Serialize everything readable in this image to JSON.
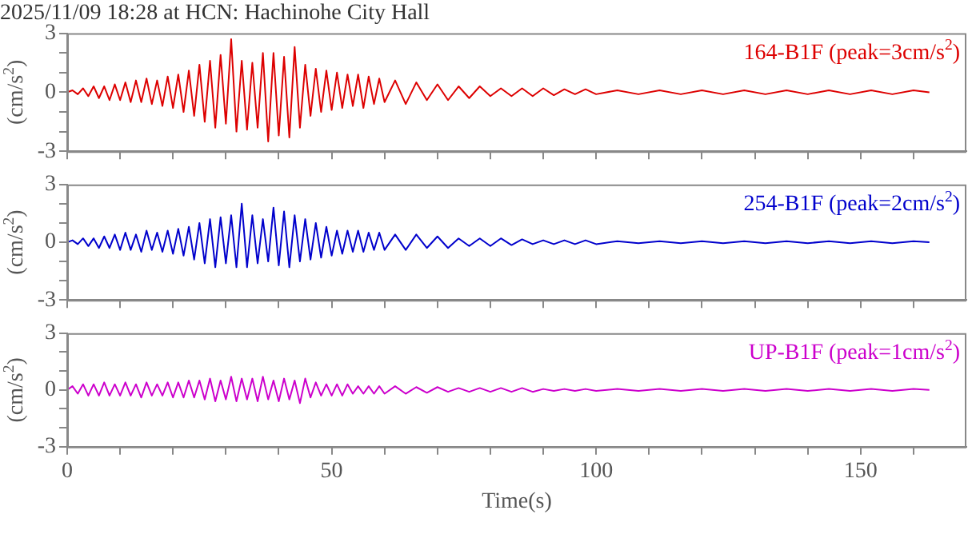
{
  "chart_data": [
    {
      "type": "line",
      "title": "2025/11/09 18:28 at HCN: Hachinohe City Hall",
      "ylabel": "(cm/s$^{2}$)",
      "annotations": [
        "164-B1F (peak=3cm/s$^{2}$)"
      ],
      "tick_labels": "y",
      "x": [
        0,
        1,
        2,
        3,
        4,
        5,
        6,
        7,
        8,
        9,
        10,
        11,
        12,
        13,
        14,
        15,
        16,
        17,
        18,
        19,
        20,
        21,
        22,
        23,
        24,
        25,
        26,
        27,
        28,
        29,
        30,
        31,
        32,
        33,
        34,
        35,
        36,
        37,
        38,
        39,
        40,
        41,
        42,
        43,
        44,
        45,
        46,
        47,
        48,
        49,
        50,
        51,
        52,
        53,
        54,
        55,
        56,
        57,
        58,
        59,
        60,
        62,
        64,
        66,
        68,
        70,
        72,
        74,
        76,
        78,
        80,
        82,
        84,
        86,
        88,
        90,
        92,
        94,
        96,
        98,
        100,
        104,
        108,
        112,
        116,
        120,
        124,
        128,
        132,
        136,
        140,
        144,
        148,
        152,
        156,
        160,
        163
      ],
      "series": [
        {
          "color": "#dd0000",
          "values": [
            0,
            0.1,
            -0.1,
            0.2,
            -0.2,
            0.3,
            -0.3,
            0.3,
            -0.4,
            0.4,
            -0.4,
            0.5,
            -0.5,
            0.6,
            -0.5,
            0.7,
            -0.6,
            0.6,
            -0.7,
            0.8,
            -0.8,
            0.9,
            -1.0,
            1.1,
            -1.2,
            1.4,
            -1.5,
            1.6,
            -1.8,
            1.9,
            -1.6,
            2.7,
            -2.0,
            1.6,
            -1.9,
            1.5,
            -1.8,
            2.0,
            -2.5,
            2.0,
            -2.2,
            1.8,
            -2.3,
            2.3,
            -1.8,
            1.4,
            -1.2,
            1.2,
            -1.0,
            1.1,
            -0.9,
            1.0,
            -0.8,
            0.9,
            -0.7,
            0.9,
            -0.8,
            0.8,
            -0.6,
            0.7,
            -0.5,
            0.6,
            -0.6,
            0.5,
            -0.4,
            0.4,
            -0.4,
            0.3,
            -0.3,
            0.3,
            -0.2,
            0.2,
            -0.2,
            0.2,
            -0.2,
            0.2,
            -0.15,
            0.15,
            -0.1,
            0.15,
            -0.1,
            0.1,
            -0.1,
            0.1,
            -0.1,
            0.1,
            -0.1,
            0.1,
            -0.1,
            0.1,
            -0.1,
            0.1,
            -0.1,
            0.1,
            -0.1,
            0.1,
            0
          ]
        }
      ],
      "xlim": [
        0,
        170
      ],
      "xticks": [
        0,
        {
          "value": 10,
          "label": null
        },
        {
          "value": 20,
          "label": null
        },
        {
          "value": 30,
          "label": null
        },
        {
          "value": 40,
          "label": null
        },
        50,
        {
          "value": 60,
          "label": null
        },
        {
          "value": 70,
          "label": null
        },
        {
          "value": 80,
          "label": null
        },
        {
          "value": 90,
          "label": null
        },
        100,
        {
          "value": 110,
          "label": null
        },
        {
          "value": 120,
          "label": null
        },
        {
          "value": 130,
          "label": null
        },
        {
          "value": 140,
          "label": null
        },
        150,
        {
          "value": 160,
          "label": null
        }
      ],
      "ylim": [
        -3,
        3
      ],
      "yticks": [
        -3,
        {
          "value": -2,
          "label": null
        },
        {
          "value": -1,
          "label": null
        },
        0,
        {
          "value": 1,
          "label": null
        },
        {
          "value": 2,
          "label": null
        },
        3
      ]
    },
    {
      "type": "line",
      "ylabel": "(cm/s$^{2}$)",
      "annotations": [
        "254-B1F (peak=2cm/s$^{2}$)"
      ],
      "tick_labels": "y",
      "x": [
        0,
        1,
        2,
        3,
        4,
        5,
        6,
        7,
        8,
        9,
        10,
        11,
        12,
        13,
        14,
        15,
        16,
        17,
        18,
        19,
        20,
        21,
        22,
        23,
        24,
        25,
        26,
        27,
        28,
        29,
        30,
        31,
        32,
        33,
        34,
        35,
        36,
        37,
        38,
        39,
        40,
        41,
        42,
        43,
        44,
        45,
        46,
        47,
        48,
        49,
        50,
        51,
        52,
        53,
        54,
        55,
        56,
        57,
        58,
        59,
        60,
        62,
        64,
        66,
        68,
        70,
        72,
        74,
        76,
        78,
        80,
        82,
        84,
        86,
        88,
        90,
        92,
        94,
        96,
        98,
        100,
        104,
        108,
        112,
        116,
        120,
        124,
        128,
        132,
        136,
        140,
        144,
        148,
        152,
        156,
        160,
        163
      ],
      "series": [
        {
          "color": "#0000cc",
          "values": [
            0,
            0.1,
            -0.1,
            0.2,
            -0.2,
            0.2,
            -0.3,
            0.3,
            -0.3,
            0.4,
            -0.4,
            0.5,
            -0.4,
            0.4,
            -0.5,
            0.6,
            -0.4,
            0.5,
            -0.5,
            0.6,
            -0.6,
            0.7,
            -0.7,
            0.8,
            -0.9,
            1.0,
            -1.1,
            1.2,
            -1.3,
            1.3,
            -1.1,
            1.4,
            -1.3,
            2.0,
            -1.3,
            1.4,
            -1.1,
            1.2,
            -1.0,
            1.8,
            -1.2,
            1.6,
            -1.3,
            1.4,
            -1.0,
            1.2,
            -0.9,
            1.0,
            -0.8,
            0.8,
            -0.7,
            0.6,
            -0.6,
            0.6,
            -0.5,
            0.6,
            -0.5,
            0.5,
            -0.4,
            0.5,
            -0.4,
            0.4,
            -0.4,
            0.4,
            -0.3,
            0.3,
            -0.3,
            0.2,
            -0.2,
            0.2,
            -0.2,
            0.2,
            -0.15,
            0.15,
            -0.1,
            0.1,
            -0.1,
            0.1,
            -0.1,
            0.1,
            -0.1,
            0.05,
            -0.05,
            0.05,
            -0.05,
            0.05,
            -0.05,
            0.05,
            -0.05,
            0.05,
            -0.05,
            0.05,
            -0.05,
            0.05,
            -0.05,
            0.05,
            0
          ]
        }
      ],
      "xlim": [
        0,
        170
      ],
      "xticks": [
        0,
        {
          "value": 10,
          "label": null
        },
        {
          "value": 20,
          "label": null
        },
        {
          "value": 30,
          "label": null
        },
        {
          "value": 40,
          "label": null
        },
        50,
        {
          "value": 60,
          "label": null
        },
        {
          "value": 70,
          "label": null
        },
        {
          "value": 80,
          "label": null
        },
        {
          "value": 90,
          "label": null
        },
        100,
        {
          "value": 110,
          "label": null
        },
        {
          "value": 120,
          "label": null
        },
        {
          "value": 130,
          "label": null
        },
        {
          "value": 140,
          "label": null
        },
        150,
        {
          "value": 160,
          "label": null
        }
      ],
      "ylim": [
        -3,
        3
      ],
      "yticks": [
        -3,
        {
          "value": -2,
          "label": null
        },
        {
          "value": -1,
          "label": null
        },
        0,
        {
          "value": 1,
          "label": null
        },
        {
          "value": 2,
          "label": null
        },
        3
      ]
    },
    {
      "type": "line",
      "xlabel": "Time(s)",
      "ylabel": "(cm/s$^{2}$)",
      "annotations": [
        "UP-B1F (peak=1cm/s$^{2}$)"
      ],
      "x": [
        0,
        1,
        2,
        3,
        4,
        5,
        6,
        7,
        8,
        9,
        10,
        11,
        12,
        13,
        14,
        15,
        16,
        17,
        18,
        19,
        20,
        21,
        22,
        23,
        24,
        25,
        26,
        27,
        28,
        29,
        30,
        31,
        32,
        33,
        34,
        35,
        36,
        37,
        38,
        39,
        40,
        41,
        42,
        43,
        44,
        45,
        46,
        47,
        48,
        49,
        50,
        51,
        52,
        53,
        54,
        55,
        56,
        57,
        58,
        59,
        60,
        62,
        64,
        66,
        68,
        70,
        72,
        74,
        76,
        78,
        80,
        82,
        84,
        86,
        88,
        90,
        92,
        94,
        96,
        98,
        100,
        104,
        108,
        112,
        116,
        120,
        124,
        128,
        132,
        136,
        140,
        144,
        148,
        152,
        156,
        160,
        163
      ],
      "series": [
        {
          "color": "#cc00cc",
          "values": [
            0,
            0.2,
            -0.2,
            0.3,
            -0.3,
            0.3,
            -0.3,
            0.4,
            -0.3,
            0.3,
            -0.3,
            0.4,
            -0.3,
            0.3,
            -0.4,
            0.4,
            -0.3,
            0.3,
            -0.3,
            0.4,
            -0.4,
            0.4,
            -0.4,
            0.5,
            -0.4,
            0.5,
            -0.5,
            0.6,
            -0.6,
            0.5,
            -0.5,
            0.7,
            -0.6,
            0.6,
            -0.5,
            0.6,
            -0.6,
            0.7,
            -0.5,
            0.5,
            -0.6,
            0.6,
            -0.5,
            0.5,
            -0.7,
            0.6,
            -0.4,
            0.4,
            -0.3,
            0.3,
            -0.3,
            0.3,
            -0.3,
            0.3,
            -0.2,
            0.2,
            -0.2,
            0.2,
            -0.2,
            0.2,
            -0.2,
            0.2,
            -0.2,
            0.15,
            -0.15,
            0.15,
            -0.1,
            0.1,
            -0.1,
            0.1,
            -0.1,
            0.1,
            -0.1,
            0.1,
            -0.1,
            0.05,
            -0.05,
            0.05,
            -0.05,
            0.05,
            -0.05,
            0.05,
            -0.05,
            0.05,
            -0.05,
            0.05,
            -0.05,
            0.05,
            -0.05,
            0.05,
            -0.05,
            0.05,
            -0.05,
            0.05,
            -0.05,
            0.05,
            0
          ]
        }
      ],
      "xlim": [
        0,
        170
      ],
      "xticks": [
        0,
        {
          "value": 10,
          "label": null
        },
        {
          "value": 20,
          "label": null
        },
        {
          "value": 30,
          "label": null
        },
        {
          "value": 40,
          "label": null
        },
        50,
        {
          "value": 60,
          "label": null
        },
        {
          "value": 70,
          "label": null
        },
        {
          "value": 80,
          "label": null
        },
        {
          "value": 90,
          "label": null
        },
        100,
        {
          "value": 110,
          "label": null
        },
        {
          "value": 120,
          "label": null
        },
        {
          "value": 130,
          "label": null
        },
        {
          "value": 140,
          "label": null
        },
        150,
        {
          "value": 160,
          "label": null
        }
      ],
      "ylim": [
        -3,
        3
      ],
      "yticks": [
        -3,
        {
          "value": -2,
          "label": null
        },
        {
          "value": -1,
          "label": null
        },
        0,
        {
          "value": 1,
          "label": null
        },
        {
          "value": 2,
          "label": null
        },
        3
      ]
    }
  ]
}
